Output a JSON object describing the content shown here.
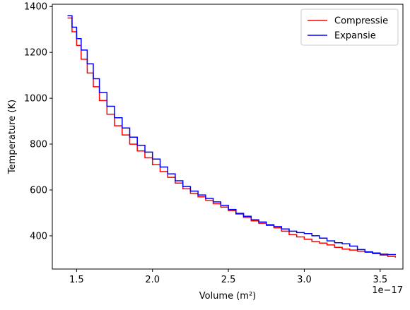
{
  "chart_data": {
    "type": "line",
    "title": "",
    "xlabel": "Volume (m²)",
    "ylabel": "Temperature (K)",
    "x_offset_text": "1e−17",
    "xlim": [
      1.34,
      3.65
    ],
    "ylim": [
      255,
      1410
    ],
    "x_ticks": [
      1.5,
      2.0,
      2.5,
      3.0,
      3.5
    ],
    "x_tick_labels": [
      "1.5",
      "2.0",
      "2.5",
      "3.0",
      "3.5"
    ],
    "y_ticks": [
      400,
      600,
      800,
      1000,
      1200,
      1400
    ],
    "y_tick_labels": [
      "400",
      "600",
      "800",
      "1000",
      "1200",
      "1400"
    ],
    "grid": false,
    "legend_position": "top-right",
    "series": [
      {
        "name": "Compressie",
        "color": "#ff0000",
        "x": [
          1.44,
          1.47,
          1.5,
          1.53,
          1.57,
          1.61,
          1.65,
          1.7,
          1.75,
          1.8,
          1.85,
          1.9,
          1.95,
          2.0,
          2.05,
          2.1,
          2.15,
          2.2,
          2.25,
          2.3,
          2.35,
          2.4,
          2.45,
          2.5,
          2.55,
          2.6,
          2.65,
          2.7,
          2.75,
          2.8,
          2.85,
          2.9,
          2.95,
          3.0,
          3.05,
          3.1,
          3.15,
          3.2,
          3.25,
          3.3,
          3.35,
          3.4,
          3.45,
          3.5,
          3.55,
          3.6
        ],
        "y": [
          1350,
          1290,
          1230,
          1170,
          1110,
          1050,
          990,
          930,
          880,
          840,
          800,
          770,
          740,
          710,
          680,
          655,
          630,
          605,
          585,
          570,
          555,
          540,
          525,
          510,
          495,
          480,
          465,
          455,
          445,
          435,
          420,
          405,
          395,
          385,
          375,
          368,
          360,
          350,
          342,
          338,
          333,
          328,
          322,
          316,
          310,
          305
        ]
      },
      {
        "name": "Expansie",
        "color": "#0000ff",
        "x": [
          1.44,
          1.47,
          1.5,
          1.53,
          1.57,
          1.61,
          1.65,
          1.7,
          1.75,
          1.8,
          1.85,
          1.9,
          1.95,
          2.0,
          2.05,
          2.1,
          2.15,
          2.2,
          2.25,
          2.3,
          2.35,
          2.4,
          2.45,
          2.5,
          2.55,
          2.6,
          2.65,
          2.7,
          2.75,
          2.8,
          2.85,
          2.9,
          2.95,
          3.0,
          3.05,
          3.1,
          3.15,
          3.2,
          3.25,
          3.3,
          3.35,
          3.4,
          3.45,
          3.5,
          3.55,
          3.6
        ],
        "y": [
          1360,
          1310,
          1260,
          1210,
          1150,
          1085,
          1025,
          965,
          915,
          870,
          830,
          795,
          765,
          735,
          700,
          670,
          640,
          615,
          595,
          578,
          563,
          548,
          533,
          515,
          498,
          485,
          470,
          460,
          448,
          440,
          430,
          420,
          414,
          410,
          400,
          390,
          378,
          370,
          365,
          355,
          340,
          330,
          325,
          320,
          318,
          316
        ]
      }
    ]
  }
}
